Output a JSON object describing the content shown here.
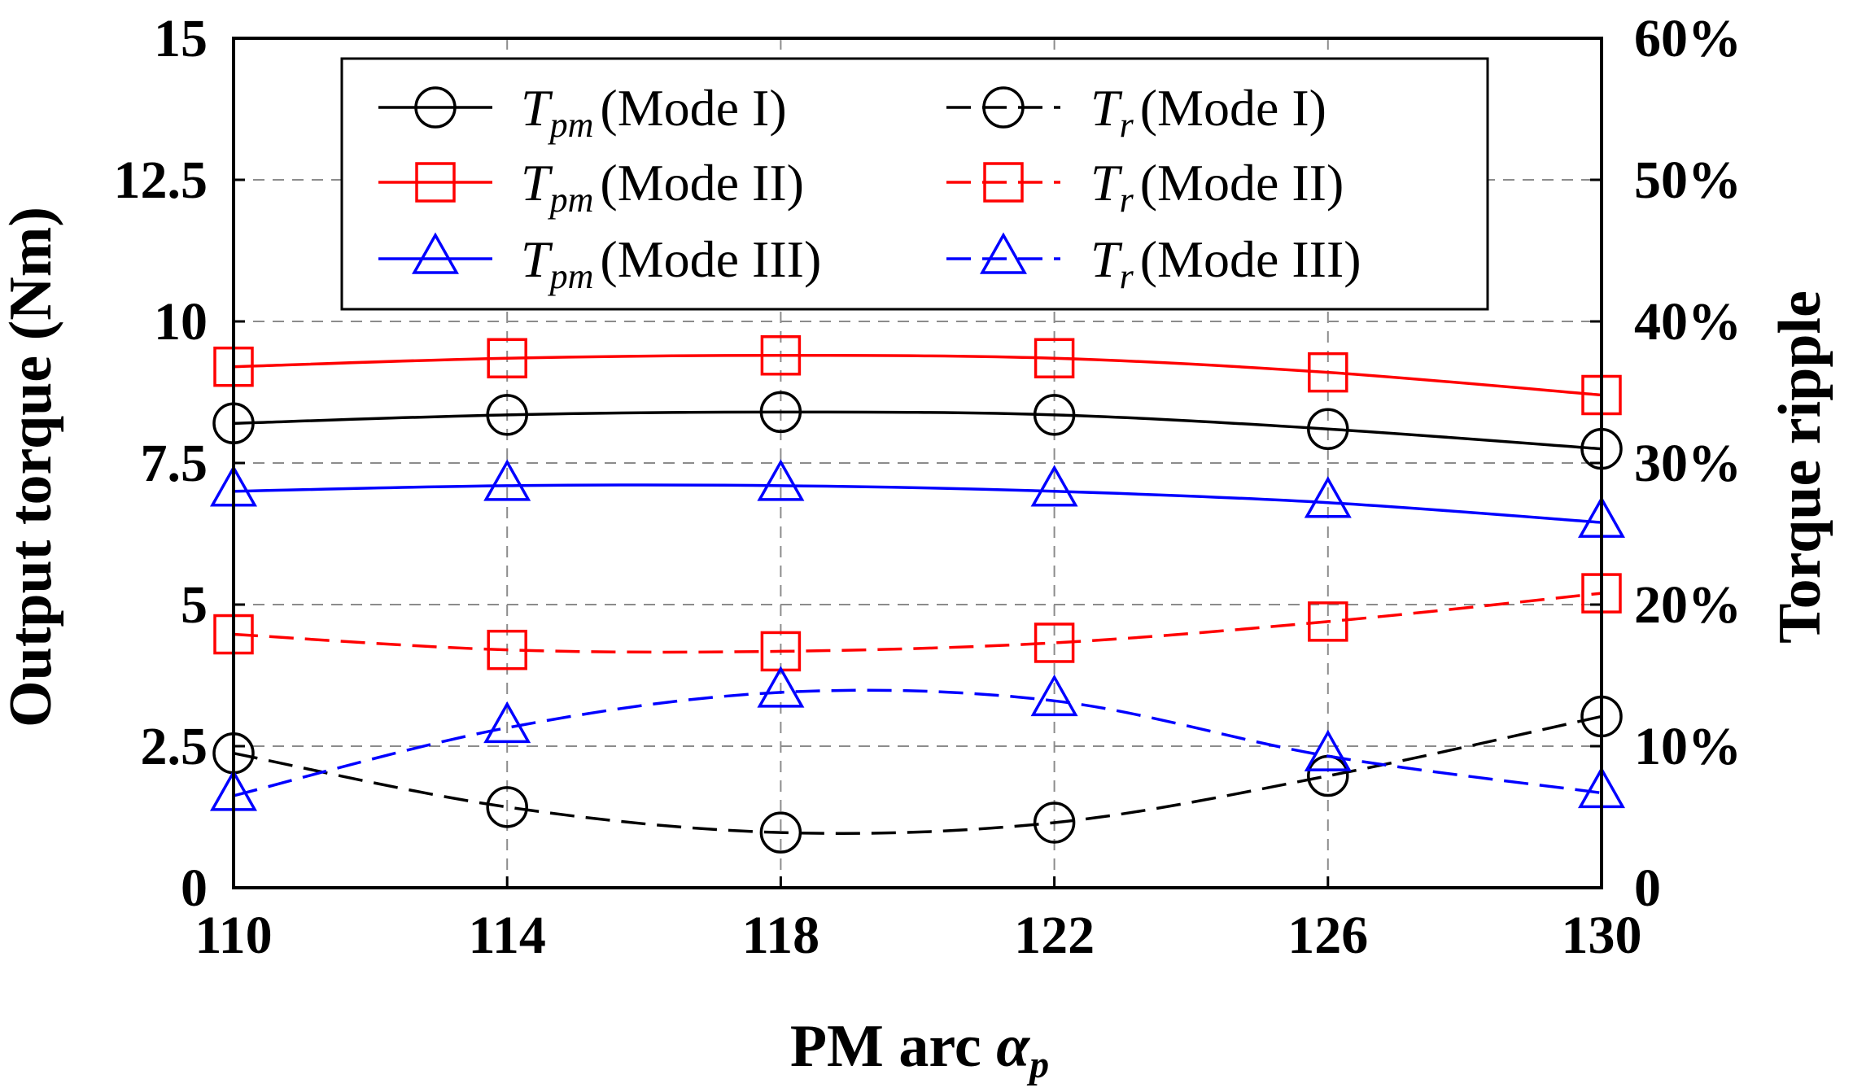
{
  "chart_data": {
    "type": "line",
    "x": [
      110,
      114,
      118,
      122,
      126,
      130
    ],
    "xlabel": {
      "text": "PM arc ",
      "symbol": "α",
      "sub": "p"
    },
    "ylabel_left": "Output torque (Nm)",
    "ylabel_right": "Torque ripple",
    "xlim": [
      110,
      130
    ],
    "ylim_left": [
      0,
      15
    ],
    "ylim_right": [
      0,
      60
    ],
    "xticks": [
      "110",
      "114",
      "118",
      "122",
      "126",
      "130"
    ],
    "yticks_left": [
      "0",
      "2.5",
      "5",
      "7.5",
      "10",
      "12.5",
      "15"
    ],
    "yticks_right": [
      "0",
      "10%",
      "20%",
      "30%",
      "40%",
      "50%",
      "60%"
    ],
    "grid": true,
    "legend_position": "top",
    "series": [
      {
        "symbol": "T",
        "sub": "pm",
        "mode": "(Mode I)",
        "axis": "left",
        "color": "#000000",
        "dash": "solid",
        "marker": "circle",
        "values": [
          8.2,
          8.35,
          8.4,
          8.35,
          8.1,
          7.75
        ]
      },
      {
        "symbol": "T",
        "sub": "pm",
        "mode": "(Mode II)",
        "axis": "left",
        "color": "#ff0000",
        "dash": "solid",
        "marker": "square",
        "values": [
          9.2,
          9.35,
          9.4,
          9.35,
          9.1,
          8.7
        ]
      },
      {
        "symbol": "T",
        "sub": "pm",
        "mode": "(Mode III)",
        "axis": "left",
        "color": "#0000ff",
        "dash": "solid",
        "marker": "triangle",
        "values": [
          7.0,
          7.1,
          7.1,
          7.0,
          6.8,
          6.45
        ]
      },
      {
        "symbol": "T",
        "sub": "r",
        "mode": "(Mode I)",
        "axis": "right",
        "color": "#000000",
        "dash": "dashed",
        "marker": "circle",
        "values": [
          9.5,
          5.7,
          3.9,
          4.6,
          7.9,
          12.1
        ]
      },
      {
        "symbol": "T",
        "sub": "r",
        "mode": "(Mode II)",
        "axis": "right",
        "color": "#ff0000",
        "dash": "dashed",
        "marker": "square",
        "values": [
          17.9,
          16.8,
          16.7,
          17.3,
          18.8,
          20.8
        ]
      },
      {
        "symbol": "T",
        "sub": "r",
        "mode": "(Mode III)",
        "axis": "right",
        "color": "#0000ff",
        "dash": "dashed",
        "marker": "triangle",
        "values": [
          6.5,
          11.3,
          13.8,
          13.2,
          9.3,
          6.7
        ]
      }
    ]
  }
}
